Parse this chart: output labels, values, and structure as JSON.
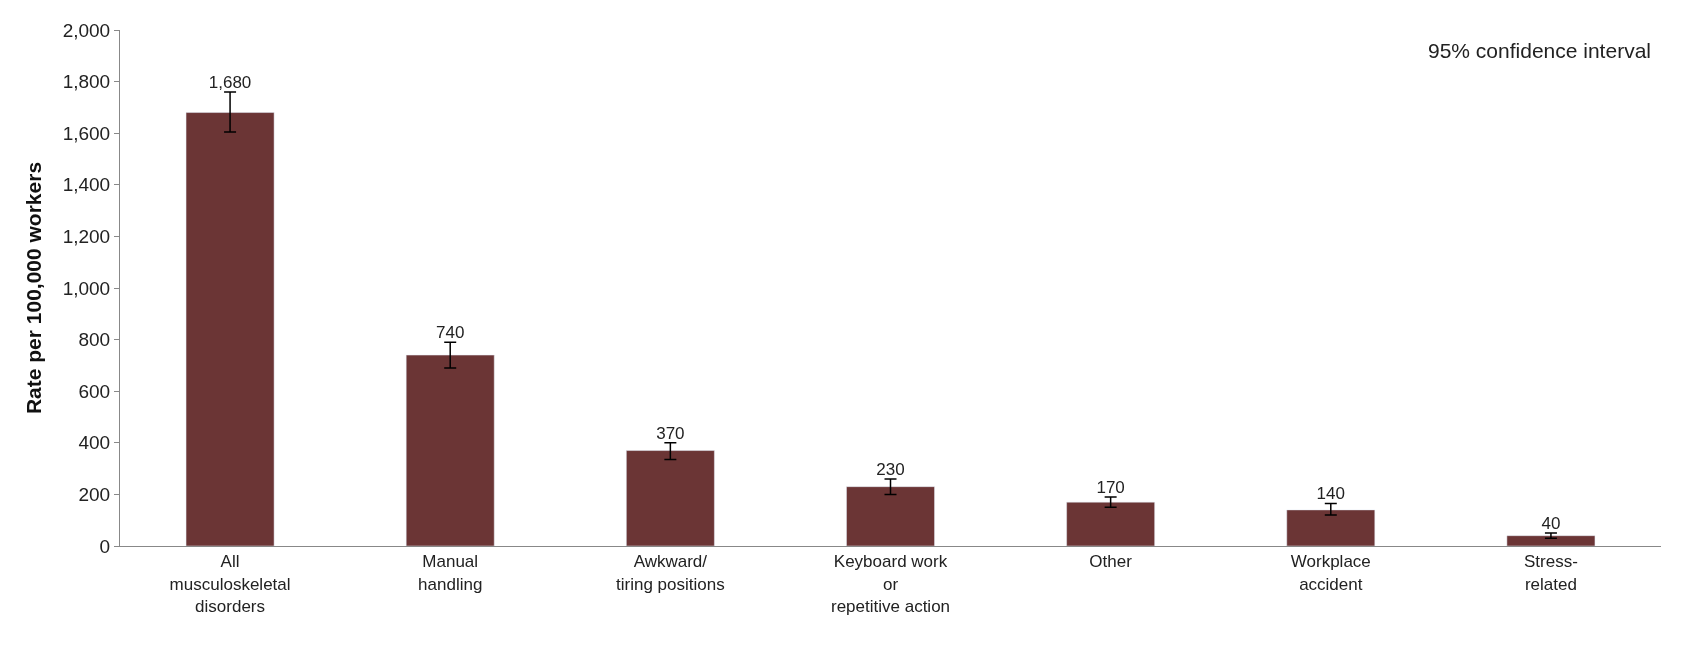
{
  "chart_data": {
    "type": "bar",
    "ylabel": "Rate per 100,000 workers",
    "categories": [
      "All\nmusculoskeletal\ndisorders",
      "Manual\nhandling",
      "Awkward/\ntiring positions",
      "Keyboard work\nor\nrepetitive action",
      "Other",
      "Workplace\naccident",
      "Stress-\nrelated"
    ],
    "values": [
      1680,
      740,
      370,
      230,
      170,
      140,
      40
    ],
    "errors": [
      [
        1605,
        1760
      ],
      [
        690,
        790
      ],
      [
        335,
        400
      ],
      [
        200,
        260
      ],
      [
        150,
        190
      ],
      [
        120,
        165
      ],
      [
        30,
        50
      ]
    ],
    "color": "#6b3535",
    "value_labels": [
      "1,680",
      "740",
      "370",
      "230",
      "170",
      "140",
      "40"
    ],
    "ylim": [
      0,
      2000
    ],
    "yticks": [
      {
        "value": 0,
        "label": "0"
      },
      {
        "value": 200,
        "label": "200"
      },
      {
        "value": 400,
        "label": "400"
      },
      {
        "value": 600,
        "label": "600"
      },
      {
        "value": 800,
        "label": "800"
      },
      {
        "value": 1000,
        "label": "1,000"
      },
      {
        "value": 1200,
        "label": "1,200"
      },
      {
        "value": 1400,
        "label": "1,400"
      },
      {
        "value": 1600,
        "label": "1,600"
      },
      {
        "value": 1800,
        "label": "1,800"
      },
      {
        "value": 2000,
        "label": "2,000"
      }
    ],
    "annotations": [
      "95% confidence interval"
    ]
  }
}
